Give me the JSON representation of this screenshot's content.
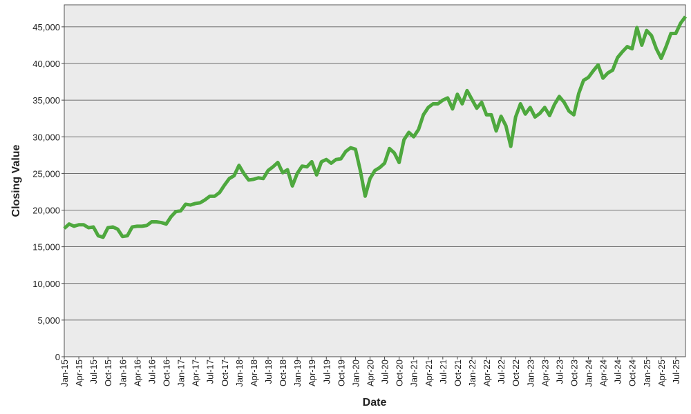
{
  "chart_data": {
    "type": "line",
    "x_label": "Date",
    "y_label": "Closing Value",
    "x": [
      "Jan-15",
      "Feb-15",
      "Mar-15",
      "Apr-15",
      "May-15",
      "Jun-15",
      "Jul-15",
      "Aug-15",
      "Sep-15",
      "Oct-15",
      "Nov-15",
      "Dec-15",
      "Jan-16",
      "Feb-16",
      "Mar-16",
      "Apr-16",
      "May-16",
      "Jun-16",
      "Jul-16",
      "Aug-16",
      "Sep-16",
      "Oct-16",
      "Nov-16",
      "Dec-16",
      "Jan-17",
      "Feb-17",
      "Mar-17",
      "Apr-17",
      "May-17",
      "Jun-17",
      "Jul-17",
      "Aug-17",
      "Sep-17",
      "Oct-17",
      "Nov-17",
      "Dec-17",
      "Jan-18",
      "Feb-18",
      "Mar-18",
      "Apr-18",
      "May-18",
      "Jun-18",
      "Jul-18",
      "Aug-18",
      "Sep-18",
      "Oct-18",
      "Nov-18",
      "Dec-18",
      "Jan-19",
      "Feb-19",
      "Mar-19",
      "Apr-19",
      "May-19",
      "Jun-19",
      "Jul-19",
      "Aug-19",
      "Sep-19",
      "Oct-19",
      "Nov-19",
      "Dec-19",
      "Jan-20",
      "Feb-20",
      "Mar-20",
      "Apr-20",
      "May-20",
      "Jun-20",
      "Jul-20",
      "Aug-20",
      "Sep-20",
      "Oct-20",
      "Nov-20",
      "Dec-20",
      "Jan-21",
      "Feb-21",
      "Mar-21",
      "Apr-21",
      "May-21",
      "Jun-21",
      "Jul-21",
      "Aug-21",
      "Sep-21",
      "Oct-21",
      "Nov-21",
      "Dec-21",
      "Jan-22",
      "Feb-22",
      "Mar-22",
      "Apr-22",
      "May-22",
      "Jun-22",
      "Jul-22",
      "Aug-22",
      "Sep-22",
      "Oct-22",
      "Nov-22",
      "Dec-22",
      "Jan-23",
      "Feb-23",
      "Mar-23",
      "Apr-23",
      "May-23",
      "Jun-23",
      "Jul-23",
      "Aug-23",
      "Sep-23",
      "Oct-23",
      "Nov-23",
      "Dec-23",
      "Jan-24",
      "Feb-24",
      "Mar-24",
      "Apr-24",
      "May-24",
      "Jun-24",
      "Jul-24",
      "Aug-24",
      "Sep-24",
      "Oct-24",
      "Nov-24",
      "Dec-24",
      "Jan-25",
      "Feb-25",
      "Mar-25",
      "Apr-25",
      "May-25",
      "Jun-25",
      "Jul-25",
      "Aug-25",
      "Sep-25"
    ],
    "series": [
      {
        "name": "Closing Value",
        "color": "#4ea83e",
        "values": [
          17500,
          18100,
          17800,
          18000,
          18000,
          17600,
          17700,
          16500,
          16300,
          17600,
          17700,
          17400,
          16400,
          16500,
          17700,
          17800,
          17800,
          17900,
          18400,
          18400,
          18300,
          18100,
          19100,
          19800,
          19900,
          20800,
          20700,
          20900,
          21000,
          21400,
          21900,
          21900,
          22400,
          23400,
          24300,
          24700,
          26100,
          25000,
          24100,
          24200,
          24400,
          24300,
          25400,
          25900,
          26500,
          25100,
          25500,
          23300,
          25000,
          26000,
          25900,
          26600,
          24800,
          26600,
          26900,
          26400,
          26900,
          27000,
          28000,
          28500,
          28300,
          25400,
          21900,
          24300,
          25400,
          25800,
          26400,
          28400,
          27800,
          26500,
          29600,
          30600,
          30000,
          31000,
          33000,
          34000,
          34500,
          34500,
          35000,
          35300,
          33800,
          35800,
          34500,
          36300,
          35100,
          33900,
          34700,
          33000,
          33000,
          30800,
          32800,
          31500,
          28700,
          32700,
          34500,
          33100,
          34000,
          32700,
          33200,
          34000,
          32900,
          34400,
          35500,
          34700,
          33500,
          33000,
          35900,
          37700,
          38100,
          39000,
          39800,
          38000,
          38700,
          39100,
          40800,
          41600,
          42300,
          42000,
          44900,
          42500,
          44500,
          43800,
          42000,
          40700,
          42300,
          44100,
          44100,
          45500,
          46400
        ]
      }
    ],
    "xticks": [
      "Jan-15",
      "Apr-15",
      "Jul-15",
      "Oct-15",
      "Jan-16",
      "Apr-16",
      "Jul-16",
      "Oct-16",
      "Jan-17",
      "Apr-17",
      "Jul-17",
      "Oct-17",
      "Jan-18",
      "Apr-18",
      "Jul-18",
      "Oct-18",
      "Jan-19",
      "Apr-19",
      "Jul-19",
      "Oct-19",
      "Jan-20",
      "Apr-20",
      "Jul-20",
      "Oct-20",
      "Jan-21",
      "Apr-21",
      "Jul-21",
      "Oct-21",
      "Jan-22",
      "Apr-22",
      "Jul-22",
      "Oct-22",
      "Jan-23",
      "Apr-23",
      "Jul-23",
      "Oct-23",
      "Jan-24",
      "Apr-24",
      "Jul-24",
      "Oct-24",
      "Jan-25",
      "Apr-25",
      "Jul-25"
    ],
    "ylim": [
      0,
      48000
    ],
    "yticks": [
      0,
      {
        "value": 5000,
        "label": "5,000"
      },
      {
        "value": 10000,
        "label": "10,000"
      },
      {
        "value": 15000,
        "label": "15,000"
      },
      {
        "value": 20000,
        "label": "20,000"
      },
      {
        "value": 25000,
        "label": "25,000"
      },
      {
        "value": 30000,
        "label": "30,000"
      },
      {
        "value": 35000,
        "label": "35,000"
      },
      {
        "value": 40000,
        "label": "40,000"
      },
      {
        "value": 45000,
        "label": "45,000"
      }
    ],
    "grid": true
  }
}
